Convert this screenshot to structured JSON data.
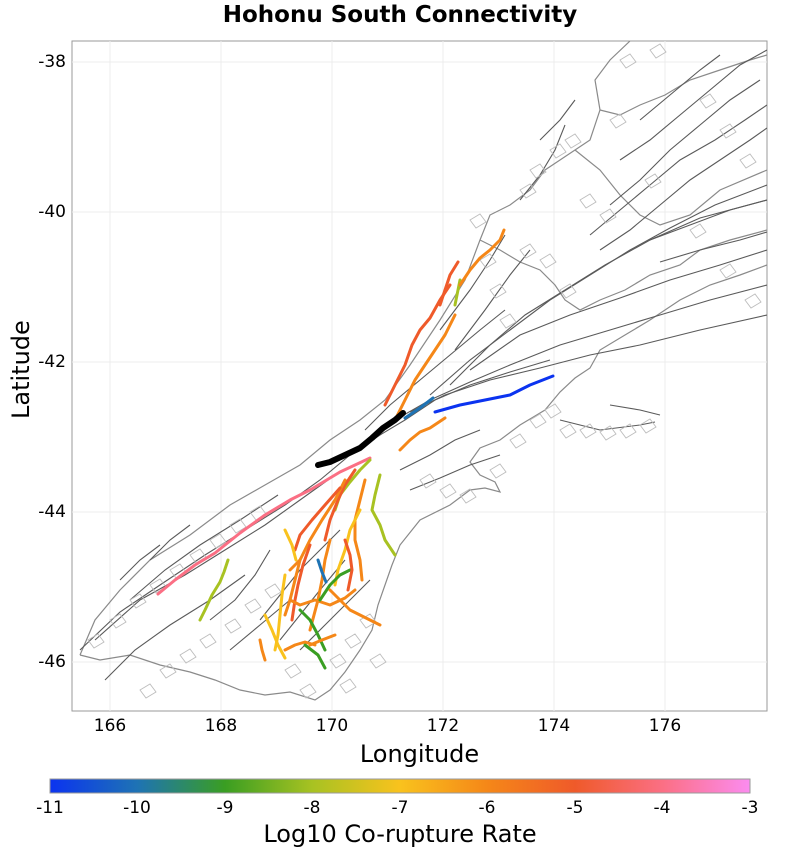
{
  "title": "Hohonu South Connectivity",
  "axes": {
    "x_label": "Longitude",
    "y_label": "Latitude",
    "x_ticks": [
      "166",
      "168",
      "170",
      "172",
      "174",
      "176"
    ],
    "y_ticks": [
      "-38",
      "-40",
      "-42",
      "-44",
      "-46"
    ],
    "x_range": [
      165.3,
      177.8
    ],
    "y_range": [
      -46.7,
      -37.7
    ],
    "grid": true
  },
  "colorbar": {
    "label": "Log10 Co-rupture Rate",
    "ticks": [
      "-11",
      "-10",
      "-9",
      "-8",
      "-7",
      "-6",
      "-5",
      "-4",
      "-3"
    ],
    "range": [
      -11,
      -3
    ],
    "colormap": [
      "#0b33f0",
      "#1e73b4",
      "#3a9e22",
      "#a8c222",
      "#f9c21d",
      "#f58718",
      "#ef5a2a",
      "#fb6f84",
      "#fb8cf0"
    ]
  },
  "colors": {
    "source_fault": "#000000",
    "background_faults": "#555555",
    "coastline": "#8a8a8a"
  },
  "map_layers": [
    "coastline",
    "fault-traces",
    "fault-planes",
    "co-rupture-faults",
    "source-fault"
  ]
}
